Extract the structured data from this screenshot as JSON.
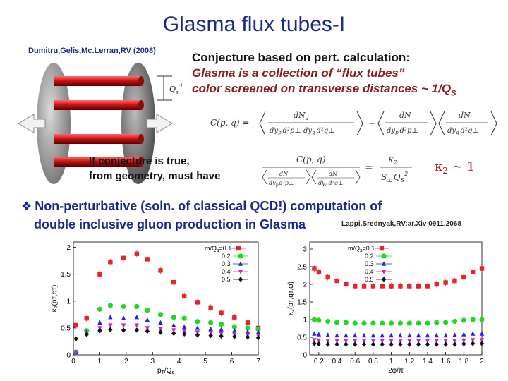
{
  "title": "Glasma flux tubes-I",
  "attribution": "Dumitru,Gelis,Mc.Lerran,RV (2008)",
  "conjecture": {
    "line1": "Conjecture based on pert. calculation:",
    "line2": "Glasma is a collection of “flux tubes”",
    "line3": "color screened on transverse distances ~ 1/Q",
    "line3_sub": "S"
  },
  "diagram": {
    "qs_label": "Q",
    "qs_sub": "s",
    "qs_power": "-1"
  },
  "correlation_formula": {
    "lhs": "C(p, q) =",
    "n2": "dN",
    "n2_sub": "2",
    "d2": "dy",
    "d2_p": "p",
    "d2_q": "q",
    "d2_rest": "d²p⊥ dy",
    "d2_rest2": "d²q⊥",
    "nN": "dN",
    "dp": "dy",
    "dp_sub": "p",
    "dp_rest": "d²p⊥",
    "dq": "dy",
    "dq_sub": "q",
    "dq_rest": "d²q⊥",
    "minus": "−"
  },
  "if_conjecture": {
    "line1": "If conjecture is true,",
    "line2": "from geometry, must have"
  },
  "ratio_formula": {
    "cpq": "C(p, q)",
    "dN": "dN",
    "dp": "dy",
    "dp_sub": "p",
    "dp_rest": "d²p⊥",
    "dq": "dy",
    "dq_sub": "q",
    "dq_rest": "d²q⊥",
    "eq": "=",
    "kappa": "κ",
    "kappa_sub": "2",
    "s": "S",
    "s_sub": "⊥",
    "q2": "Q",
    "q2_sub": "S",
    "q2_sup": "2",
    "result": "κ",
    "result_sub": "2",
    "result_rest": "∼ 1"
  },
  "bullet": {
    "line1": "Non-perturbative (soln. of classical QCD!) computation of",
    "line2": "double inclusive gluon production in Glasma",
    "reference": "Lappi,Srednyak,RV:ar.Xiv 0911.2068"
  },
  "colors": {
    "title": "#1a2a8a",
    "red_text": "#8b1c1c",
    "series": [
      "#e8232a",
      "#1fd81f",
      "#1a2ad8",
      "#d81ad8",
      "#111111"
    ]
  },
  "chart_data": [
    {
      "type": "scatter",
      "xlabel": "p",
      "xlabel_sub": "T",
      "xlabel_rest": "/Q",
      "xlabel_sub2": "s",
      "ylabel": "κ₂(pᴛ,qᴛ)",
      "xlim": [
        0,
        7
      ],
      "ylim": [
        0,
        2.1
      ],
      "xticks": [
        "0",
        "1",
        "2",
        "3",
        "4",
        "5",
        "6",
        "7"
      ],
      "yticks": [
        "0",
        "0.5",
        "1",
        "1.5",
        "2"
      ],
      "legend_title": "m/Q",
      "legend_title_sub": "s",
      "legend_title_rest": "=0.1",
      "legend_position": "top-right",
      "series": [
        {
          "name": "0.1",
          "marker": "square",
          "x": [
            0.1,
            0.5,
            1.0,
            1.4,
            1.9,
            2.4,
            2.8,
            3.3,
            3.8,
            4.2,
            4.7,
            5.2,
            5.6,
            6.1,
            6.6,
            7.0
          ],
          "values": [
            0.55,
            0.68,
            1.5,
            1.73,
            1.8,
            1.88,
            1.78,
            1.57,
            1.35,
            1.1,
            0.98,
            0.88,
            0.78,
            0.7,
            0.6,
            0.5
          ]
        },
        {
          "name": "0.2",
          "marker": "circle",
          "x": [
            0.1,
            0.5,
            1.0,
            1.4,
            1.9,
            2.4,
            2.8,
            3.3,
            3.8,
            4.2,
            4.7,
            5.2,
            5.6,
            6.1,
            6.6,
            7.0
          ],
          "values": [
            0.05,
            0.45,
            0.85,
            0.92,
            0.9,
            0.9,
            0.83,
            0.75,
            0.7,
            0.68,
            0.62,
            0.6,
            0.57,
            0.52,
            0.5,
            0.48
          ]
        },
        {
          "name": "0.3",
          "marker": "triangle-up",
          "x": [
            0.1,
            0.5,
            1.0,
            1.4,
            1.9,
            2.4,
            2.8,
            3.3,
            3.8,
            4.2,
            4.7,
            5.2,
            5.6,
            6.1,
            6.6,
            7.0
          ],
          "values": [
            0.05,
            0.42,
            0.6,
            0.7,
            0.68,
            0.7,
            0.65,
            0.6,
            0.55,
            0.52,
            0.5,
            0.48,
            0.47,
            0.45,
            0.43,
            0.42
          ]
        },
        {
          "name": "0.4",
          "marker": "triangle-down",
          "x": [
            0.1,
            0.5,
            1.0,
            1.4,
            1.9,
            2.4,
            2.8,
            3.3,
            3.8,
            4.2,
            4.7,
            5.2,
            5.6,
            6.1,
            6.6,
            7.0
          ],
          "values": [
            0.05,
            0.4,
            0.5,
            0.55,
            0.55,
            0.55,
            0.5,
            0.48,
            0.46,
            0.44,
            0.42,
            0.41,
            0.4,
            0.38,
            0.37,
            0.36
          ]
        },
        {
          "name": "0.5",
          "marker": "diamond",
          "x": [
            0.1,
            0.5,
            1.0,
            1.4,
            1.9,
            2.4,
            2.8,
            3.3,
            3.8,
            4.2,
            4.7,
            5.2,
            5.6,
            6.1,
            6.6,
            7.0
          ],
          "values": [
            0.3,
            0.38,
            0.45,
            0.47,
            0.46,
            0.46,
            0.44,
            0.42,
            0.4,
            0.39,
            0.37,
            0.36,
            0.35,
            0.34,
            0.33,
            0.32
          ]
        }
      ]
    },
    {
      "type": "scatter",
      "xlabel": "2φ/π",
      "ylabel": "κ₂(pᴛ,qᴛ,φ)",
      "xlim": [
        0.1,
        2.0
      ],
      "ylim": [
        0,
        3.2
      ],
      "xticks": [
        "0.2",
        "0.4",
        "0.6",
        "0.8",
        "1",
        "1.2",
        "1.4",
        "1.6",
        "1.8",
        "2"
      ],
      "yticks": [
        "0",
        "0.5",
        "1",
        "1.5",
        "2",
        "2.5",
        "3"
      ],
      "legend_title": "m/Q",
      "legend_title_sub": "s",
      "legend_title_rest": "=0.1",
      "legend_position": "top-left",
      "series": [
        {
          "name": "0.1",
          "marker": "square",
          "x": [
            0.15,
            0.2,
            0.3,
            0.4,
            0.5,
            0.6,
            0.7,
            0.8,
            0.9,
            1.0,
            1.1,
            1.2,
            1.3,
            1.4,
            1.5,
            1.6,
            1.7,
            1.8,
            1.9,
            2.0
          ],
          "values": [
            2.45,
            2.35,
            2.2,
            2.1,
            2.0,
            1.95,
            1.95,
            1.95,
            1.95,
            1.95,
            1.95,
            1.95,
            1.95,
            1.95,
            2.0,
            2.05,
            2.1,
            2.2,
            2.35,
            2.45
          ]
        },
        {
          "name": "0.2",
          "marker": "circle",
          "x": [
            0.15,
            0.2,
            0.3,
            0.4,
            0.5,
            0.6,
            0.7,
            0.8,
            0.9,
            1.0,
            1.1,
            1.2,
            1.3,
            1.4,
            1.5,
            1.6,
            1.7,
            1.8,
            1.9,
            2.0
          ],
          "values": [
            1.0,
            0.98,
            0.95,
            0.92,
            0.92,
            0.9,
            0.9,
            0.9,
            0.9,
            0.9,
            0.9,
            0.9,
            0.9,
            0.9,
            0.92,
            0.92,
            0.95,
            0.98,
            1.0,
            1.0
          ]
        },
        {
          "name": "0.3",
          "marker": "triangle-up",
          "x": [
            0.15,
            0.2,
            0.3,
            0.4,
            0.5,
            0.6,
            0.7,
            0.8,
            0.9,
            1.0,
            1.1,
            1.2,
            1.3,
            1.4,
            1.5,
            1.6,
            1.7,
            1.8,
            1.9,
            2.0
          ],
          "values": [
            0.6,
            0.58,
            0.56,
            0.55,
            0.55,
            0.55,
            0.55,
            0.55,
            0.55,
            0.55,
            0.55,
            0.55,
            0.55,
            0.55,
            0.55,
            0.55,
            0.56,
            0.58,
            0.6,
            0.6
          ]
        },
        {
          "name": "0.4",
          "marker": "triangle-down",
          "x": [
            0.15,
            0.2,
            0.3,
            0.4,
            0.5,
            0.6,
            0.7,
            0.8,
            0.9,
            1.0,
            1.1,
            1.2,
            1.3,
            1.4,
            1.5,
            1.6,
            1.7,
            1.8,
            1.9,
            2.0
          ],
          "values": [
            0.42,
            0.41,
            0.4,
            0.4,
            0.4,
            0.4,
            0.4,
            0.4,
            0.4,
            0.4,
            0.4,
            0.4,
            0.4,
            0.4,
            0.4,
            0.4,
            0.4,
            0.41,
            0.42,
            0.42
          ]
        },
        {
          "name": "0.5",
          "marker": "diamond",
          "x": [
            0.15,
            0.2,
            0.3,
            0.4,
            0.5,
            0.6,
            0.7,
            0.8,
            0.9,
            1.0,
            1.1,
            1.2,
            1.3,
            1.4,
            1.5,
            1.6,
            1.7,
            1.8,
            1.9,
            2.0
          ],
          "values": [
            0.32,
            0.31,
            0.3,
            0.3,
            0.3,
            0.3,
            0.3,
            0.3,
            0.3,
            0.3,
            0.3,
            0.3,
            0.3,
            0.3,
            0.3,
            0.3,
            0.3,
            0.31,
            0.32,
            0.32
          ]
        }
      ]
    }
  ]
}
